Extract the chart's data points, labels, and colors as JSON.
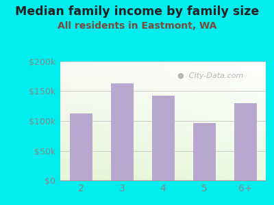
{
  "categories": [
    "2",
    "3",
    "4",
    "5",
    "6+"
  ],
  "values": [
    113000,
    163000,
    143000,
    97000,
    130000
  ],
  "bar_color": "#b8a8d0",
  "title": "Median family income by family size",
  "subtitle": "All residents in Eastmont, WA",
  "title_fontsize": 12.5,
  "subtitle_fontsize": 10,
  "title_color": "#222222",
  "subtitle_color": "#7a4a3a",
  "outer_bg": "#00EEEE",
  "ylim": [
    0,
    200000
  ],
  "yticks": [
    0,
    50000,
    100000,
    150000,
    200000
  ],
  "ytick_labels": [
    "$0",
    "$50k",
    "$100k",
    "$150k",
    "$200k"
  ],
  "grid_color": "#cccccc",
  "watermark_text": "City-Data.com",
  "watermark_color": "#aaaaaa",
  "tick_color": "#888888",
  "xlabel_fontsize": 10
}
